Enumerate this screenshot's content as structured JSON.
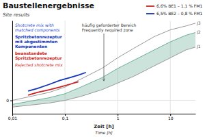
{
  "chart_data": {
    "type": "line",
    "title": "Baustellenergebnisse",
    "subtitle": "Site results",
    "xlabel": [
      "Zeit [h]",
      "Time [h]"
    ],
    "series": [
      {
        "name": "J1",
        "color": "#999999",
        "x": [
          0.01,
          0.05,
          0.1,
          0.2,
          0.5,
          1,
          2,
          5,
          10,
          20,
          30
        ],
        "values": [
          -5,
          -2,
          0,
          3,
          8,
          13,
          18,
          26,
          32,
          38,
          40
        ]
      },
      {
        "name": "J2",
        "color": "#6aaf98",
        "x": [
          0.01,
          0.05,
          0.1,
          0.2,
          0.5,
          1,
          2,
          5,
          10,
          20,
          30
        ],
        "values": [
          -3,
          2,
          5,
          10,
          17,
          24,
          30,
          38,
          44,
          49,
          51
        ]
      },
      {
        "name": "J3",
        "color": "#999999",
        "x": [
          0.01,
          0.05,
          0.1,
          0.2,
          0.5,
          1,
          2,
          5,
          10,
          20,
          30
        ],
        "values": [
          0,
          6,
          10,
          16,
          24,
          32,
          39,
          48,
          53,
          56,
          58
        ]
      },
      {
        "name": "6,6% BE1 – 1,1 % FM1",
        "color": "#cc2222",
        "x": [
          0.02,
          0.03,
          0.05,
          0.08,
          0.12,
          0.18
        ],
        "values": [
          4,
          6,
          8,
          10,
          12,
          14
        ]
      },
      {
        "name": "6,5% BE2 – 0,8 % FM1",
        "color": "#1133bb",
        "x": [
          0.02,
          0.03,
          0.05,
          0.08,
          0.12,
          0.18,
          0.25
        ],
        "values": [
          7,
          9,
          12,
          15,
          17,
          19,
          21
        ]
      }
    ],
    "xlim": [
      0.01,
      30
    ],
    "ylim": [
      -10,
      60
    ],
    "xticks": [
      {
        "value": 0.01,
        "label": "0,01"
      },
      {
        "value": 0.1,
        "label": "0,1"
      },
      1,
      10
    ],
    "yticks": [
      0
    ],
    "log": "x",
    "grid": true,
    "legend": "upper right",
    "annotations": [
      {
        "text": "häufig geforderter Bereich\nFrequently required zone"
      },
      {
        "text": "Shotcrete mix with\nmatched components",
        "color": "#2244cc"
      },
      {
        "text": "Spritzbetonrezeptur\nmit abgestimmten\nKomponenten",
        "color": "#1133bb"
      },
      {
        "text": "beanstandete\nSpritzbetonrezeptur",
        "color": "#cc2222"
      },
      {
        "text": "Rejected shotcrete mix",
        "color": "#cc2222"
      }
    ]
  }
}
